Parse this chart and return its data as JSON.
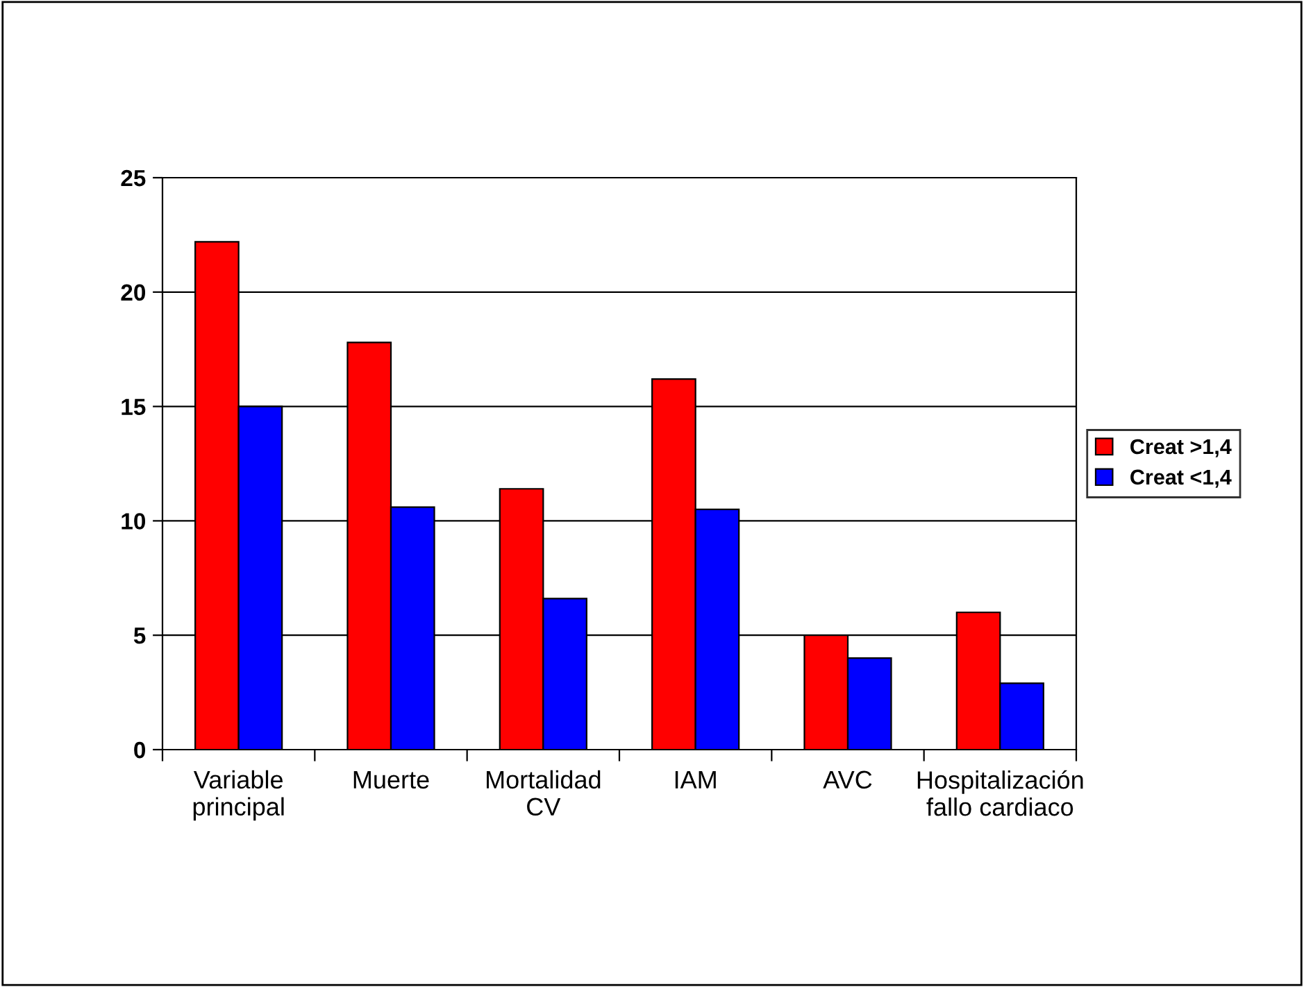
{
  "chart_data": {
    "type": "bar",
    "categories": [
      "Variable\nprincipal",
      "Muerte",
      "Mortalidad\nCV",
      "IAM",
      "AVC",
      "Hospitalización\nfallo cardiaco"
    ],
    "series": [
      {
        "name": "Creat >1,4",
        "color": "#ff0000",
        "values": [
          22.2,
          17.8,
          11.4,
          16.2,
          5.0,
          6.0
        ]
      },
      {
        "name": "Creat <1,4",
        "color": "#0000ff",
        "values": [
          15.0,
          10.6,
          6.6,
          10.5,
          4.0,
          2.9
        ]
      }
    ],
    "ylim": [
      0,
      25
    ],
    "yticks": [
      0,
      5,
      10,
      15,
      20,
      25
    ],
    "grid": "y",
    "legend": "right"
  }
}
